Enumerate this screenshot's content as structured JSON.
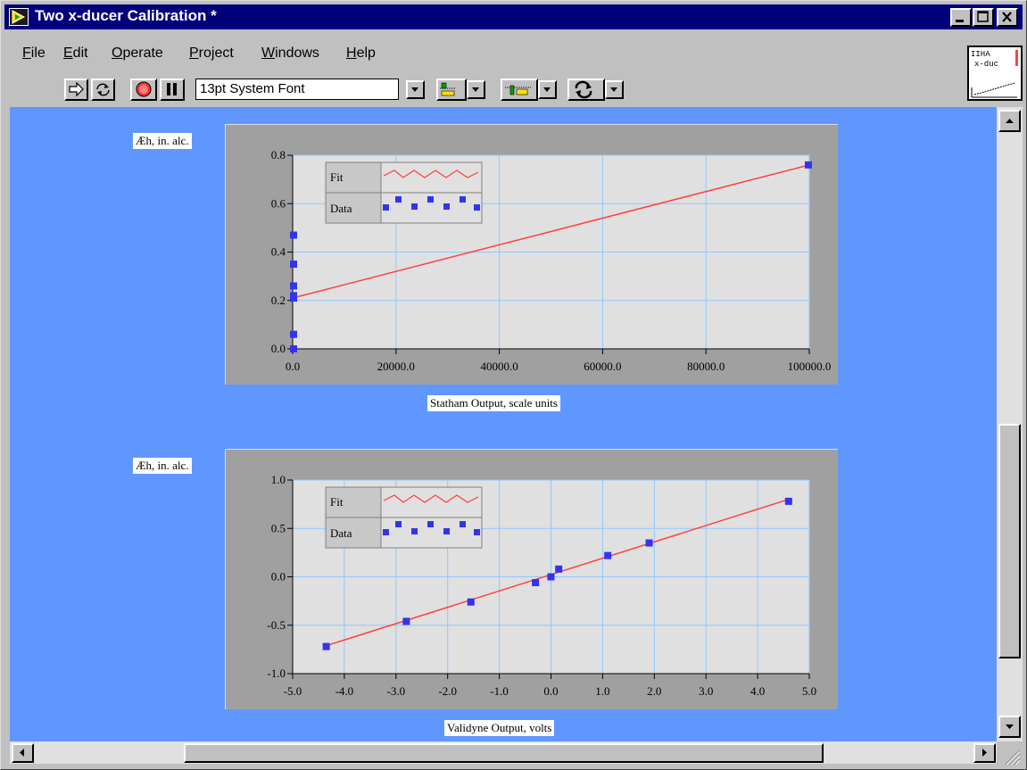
{
  "window": {
    "title": "Two x-ducer Calibration *"
  },
  "menu": {
    "items": [
      {
        "label": "File"
      },
      {
        "label": "Edit"
      },
      {
        "label": "Operate"
      },
      {
        "label": "Project"
      },
      {
        "label": "Windows"
      },
      {
        "label": "Help"
      }
    ]
  },
  "toolbar": {
    "font_selector": "13pt System Font",
    "icons": [
      "run-arrow-icon",
      "run-continuous-icon",
      "abort-icon",
      "pause-icon",
      "align-icon",
      "distribute-icon",
      "reorder-icon"
    ]
  },
  "vi_icon": {
    "line1": "IIHA",
    "line2": "x-duc"
  },
  "colors": {
    "panel": "#5f97ff",
    "plot_bg": "#e0e0e0",
    "frame": "#a0a0a0",
    "grid": "#8ec8ff",
    "fit": "#ff4040",
    "data": "#3333ee"
  },
  "graphs": [
    {
      "ylabel": "Æh, in. alc.",
      "xlabel": "Statham Output, scale units",
      "legend": [
        "Fit",
        "Data"
      ],
      "xticks": [
        "0.0",
        "20000.0",
        "40000.0",
        "60000.0",
        "80000.0",
        "100000.0"
      ],
      "yticks": [
        "0.0",
        "0.2",
        "0.4",
        "0.6",
        "0.8"
      ]
    },
    {
      "ylabel": "Æh, in. alc.",
      "xlabel": "Validyne Output, volts",
      "legend": [
        "Fit",
        "Data"
      ],
      "xticks": [
        "-5.0",
        "-4.0",
        "-3.0",
        "-2.0",
        "-1.0",
        "0.0",
        "1.0",
        "2.0",
        "3.0",
        "4.0",
        "5.0"
      ],
      "yticks": [
        "-1.0",
        "-0.5",
        "0.0",
        "0.5",
        "1.0"
      ]
    }
  ],
  "chart_data": [
    {
      "type": "scatter",
      "xlabel": "Statham Output, scale units",
      "ylabel": "Æh, in. alc.",
      "xlim": [
        0,
        100000
      ],
      "ylim": [
        0,
        0.8
      ],
      "grid": true,
      "legend_position": "top-left",
      "series": [
        {
          "name": "Fit",
          "x": [
            0,
            100000
          ],
          "y": [
            0.21,
            0.76
          ]
        },
        {
          "name": "Data",
          "x": [
            100,
            100,
            100,
            100,
            100,
            100,
            100,
            100000
          ],
          "y": [
            0.0,
            0.06,
            0.22,
            0.26,
            0.35,
            0.47,
            0.21,
            0.76
          ]
        }
      ]
    },
    {
      "type": "scatter",
      "xlabel": "Validyne Output, volts",
      "ylabel": "Æh, in. alc.",
      "xlim": [
        -5,
        5
      ],
      "ylim": [
        -1,
        1
      ],
      "grid": true,
      "legend_position": "top-left",
      "series": [
        {
          "name": "Fit",
          "x": [
            -4.4,
            4.6
          ],
          "y": [
            -0.72,
            0.8
          ]
        },
        {
          "name": "Data",
          "x": [
            -4.35,
            -2.8,
            -1.55,
            -0.3,
            0.0,
            0.15,
            1.1,
            1.9,
            4.6
          ],
          "y": [
            -0.72,
            -0.46,
            -0.26,
            -0.06,
            0.0,
            0.08,
            0.22,
            0.35,
            0.78
          ]
        }
      ]
    }
  ]
}
